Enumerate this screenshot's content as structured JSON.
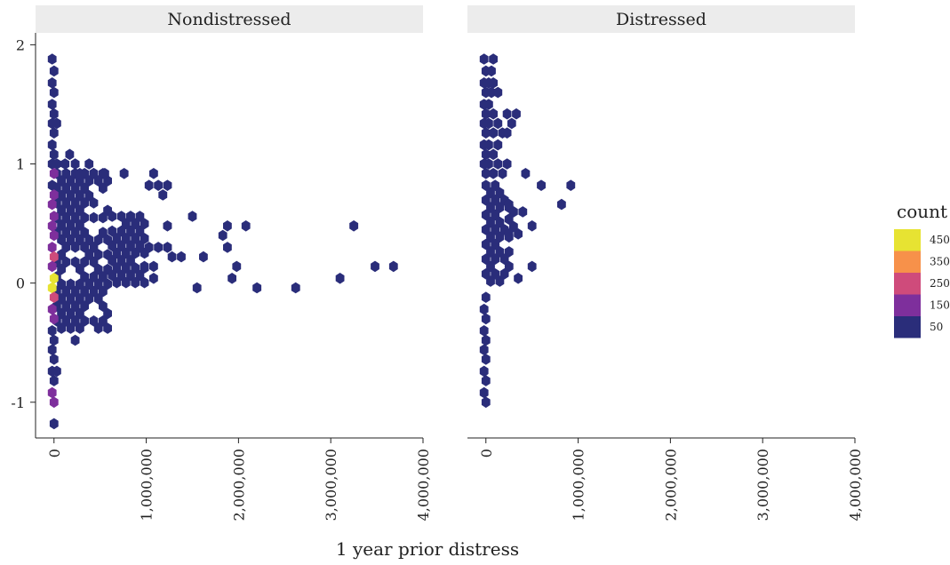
{
  "chart_data": {
    "type": "hexbin",
    "xlabel": "1 year prior distress",
    "ylabel": "",
    "xlim": [
      -200000,
      4000000
    ],
    "ylim": [
      -1.3,
      2.1
    ],
    "x_ticks": [
      0,
      1000000,
      2000000,
      3000000,
      4000000
    ],
    "x_tick_labels": [
      "0",
      "1,000,000",
      "2,000,000",
      "3,000,000",
      "4,000,000"
    ],
    "y_ticks": [
      -1,
      0,
      1,
      2
    ],
    "y_tick_labels": [
      "-1",
      "0",
      "1",
      "2"
    ],
    "legend": {
      "title": "count",
      "placement": "right",
      "entries": [
        {
          "label": "450",
          "color": "#e7e332"
        },
        {
          "label": "350",
          "color": "#f7914a"
        },
        {
          "label": "250",
          "color": "#cf4b7b"
        },
        {
          "label": "150",
          "color": "#7e2f9c"
        },
        {
          "label": "50",
          "color": "#2a2d7a"
        }
      ]
    },
    "panels": [
      {
        "name": "Nondistressed",
        "bins": [
          {
            "x": -20000,
            "y": 1.88,
            "count": 50
          },
          {
            "x": 0,
            "y": 1.78,
            "count": 50
          },
          {
            "x": -20000,
            "y": 1.68,
            "count": 50
          },
          {
            "x": 0,
            "y": 1.6,
            "count": 50
          },
          {
            "x": -20000,
            "y": 1.5,
            "count": 50
          },
          {
            "x": 0,
            "y": 1.42,
            "count": 50
          },
          {
            "x": -20000,
            "y": 1.34,
            "count": 50
          },
          {
            "x": 30000,
            "y": 1.34,
            "count": 50
          },
          {
            "x": 0,
            "y": 1.26,
            "count": 50
          },
          {
            "x": -20000,
            "y": 1.16,
            "count": 50
          },
          {
            "x": 0,
            "y": 1.08,
            "count": 50
          },
          {
            "x": -20000,
            "y": 1.0,
            "count": 50
          },
          {
            "x": 30000,
            "y": 1.0,
            "count": 50
          },
          {
            "x": 0,
            "y": 0.92,
            "count": 150
          },
          {
            "x": -20000,
            "y": 0.82,
            "count": 50
          },
          {
            "x": 0,
            "y": 0.74,
            "count": 150
          },
          {
            "x": -20000,
            "y": 0.66,
            "count": 150
          },
          {
            "x": 0,
            "y": 0.56,
            "count": 150
          },
          {
            "x": -20000,
            "y": 0.48,
            "count": 150
          },
          {
            "x": 0,
            "y": 0.4,
            "count": 150
          },
          {
            "x": -20000,
            "y": 0.3,
            "count": 150
          },
          {
            "x": 0,
            "y": 0.22,
            "count": 250
          },
          {
            "x": -20000,
            "y": 0.14,
            "count": 150
          },
          {
            "x": 0,
            "y": 0.04,
            "count": 450
          },
          {
            "x": -20000,
            "y": -0.04,
            "count": 450
          },
          {
            "x": 0,
            "y": -0.12,
            "count": 250
          },
          {
            "x": -20000,
            "y": -0.22,
            "count": 150
          },
          {
            "x": 0,
            "y": -0.3,
            "count": 150
          },
          {
            "x": -20000,
            "y": -0.4,
            "count": 50
          },
          {
            "x": 0,
            "y": -0.48,
            "count": 50
          },
          {
            "x": -20000,
            "y": -0.56,
            "count": 50
          },
          {
            "x": 0,
            "y": -0.64,
            "count": 50
          },
          {
            "x": -20000,
            "y": -0.74,
            "count": 50
          },
          {
            "x": 30000,
            "y": -0.74,
            "count": 50
          },
          {
            "x": 0,
            "y": -0.82,
            "count": 50
          },
          {
            "x": -20000,
            "y": -0.92,
            "count": 150
          },
          {
            "x": 0,
            "y": -1.0,
            "count": 150
          },
          {
            "x": 0,
            "y": -1.18,
            "count": 50
          },
          {
            "x": 230000,
            "y": -0.48,
            "count": 50
          },
          {
            "x": 120000,
            "y": 1.0,
            "count": 50
          },
          {
            "x": 170000,
            "y": 1.08,
            "count": 50
          },
          {
            "x": 230000,
            "y": 1.0,
            "count": 50
          },
          {
            "x": 280000,
            "y": 0.92,
            "count": 50
          },
          {
            "x": 380000,
            "y": 1.0,
            "count": 50
          },
          {
            "x": 430000,
            "y": 0.92,
            "count": 50
          },
          {
            "x": 550000,
            "y": 0.92,
            "count": 50
          },
          {
            "x": 760000,
            "y": 0.92,
            "count": 50
          },
          {
            "x": 1080000,
            "y": 0.92,
            "count": 50
          },
          {
            "x": 1030000,
            "y": 0.82,
            "count": 50
          },
          {
            "x": 1130000,
            "y": 0.82,
            "count": 50
          },
          {
            "x": 1230000,
            "y": 0.82,
            "count": 50
          },
          {
            "x": 1180000,
            "y": 0.74,
            "count": 50
          },
          {
            "x": 1500000,
            "y": 0.56,
            "count": 50
          },
          {
            "x": 830000,
            "y": 0.56,
            "count": 50
          },
          {
            "x": 1230000,
            "y": 0.48,
            "count": 50
          },
          {
            "x": 1880000,
            "y": 0.48,
            "count": 50
          },
          {
            "x": 2080000,
            "y": 0.48,
            "count": 50
          },
          {
            "x": 3250000,
            "y": 0.48,
            "count": 50
          },
          {
            "x": 1830000,
            "y": 0.4,
            "count": 50
          },
          {
            "x": 1880000,
            "y": 0.3,
            "count": 50
          },
          {
            "x": 1030000,
            "y": 0.3,
            "count": 50
          },
          {
            "x": 1130000,
            "y": 0.3,
            "count": 50
          },
          {
            "x": 1230000,
            "y": 0.3,
            "count": 50
          },
          {
            "x": 930000,
            "y": 0.3,
            "count": 50
          },
          {
            "x": 1280000,
            "y": 0.22,
            "count": 50
          },
          {
            "x": 1380000,
            "y": 0.22,
            "count": 50
          },
          {
            "x": 1620000,
            "y": 0.22,
            "count": 50
          },
          {
            "x": 980000,
            "y": 0.14,
            "count": 50
          },
          {
            "x": 1080000,
            "y": 0.14,
            "count": 50
          },
          {
            "x": 1980000,
            "y": 0.14,
            "count": 50
          },
          {
            "x": 3480000,
            "y": 0.14,
            "count": 50
          },
          {
            "x": 3680000,
            "y": 0.14,
            "count": 50
          },
          {
            "x": 1080000,
            "y": 0.04,
            "count": 50
          },
          {
            "x": 1930000,
            "y": 0.04,
            "count": 50
          },
          {
            "x": 3100000,
            "y": 0.04,
            "count": 50
          },
          {
            "x": 1550000,
            "y": -0.04,
            "count": 50
          },
          {
            "x": 2200000,
            "y": -0.04,
            "count": 50
          },
          {
            "x": 2620000,
            "y": -0.04,
            "count": 50
          }
        ],
        "dense_region": [
          {
            "x_min": 30000,
            "x_max": 630000,
            "y_min": -0.4,
            "y_max": 0.92,
            "count": 50
          },
          {
            "x_min": 630000,
            "x_max": 1000000,
            "y_min": 0.0,
            "y_max": 0.56,
            "count": 50
          }
        ]
      },
      {
        "name": "Distressed",
        "bins": [
          {
            "x": -20000,
            "y": 1.88,
            "count": 50
          },
          {
            "x": 80000,
            "y": 1.88,
            "count": 50
          },
          {
            "x": 0,
            "y": 1.78,
            "count": 50
          },
          {
            "x": 60000,
            "y": 1.78,
            "count": 50
          },
          {
            "x": -20000,
            "y": 1.68,
            "count": 50
          },
          {
            "x": 30000,
            "y": 1.68,
            "count": 50
          },
          {
            "x": 80000,
            "y": 1.68,
            "count": 50
          },
          {
            "x": 0,
            "y": 1.6,
            "count": 50
          },
          {
            "x": 60000,
            "y": 1.6,
            "count": 50
          },
          {
            "x": 130000,
            "y": 1.6,
            "count": 50
          },
          {
            "x": -20000,
            "y": 1.5,
            "count": 50
          },
          {
            "x": 30000,
            "y": 1.5,
            "count": 50
          },
          {
            "x": 0,
            "y": 1.42,
            "count": 50
          },
          {
            "x": 80000,
            "y": 1.42,
            "count": 50
          },
          {
            "x": 230000,
            "y": 1.42,
            "count": 50
          },
          {
            "x": 330000,
            "y": 1.42,
            "count": 50
          },
          {
            "x": -20000,
            "y": 1.34,
            "count": 50
          },
          {
            "x": 30000,
            "y": 1.34,
            "count": 50
          },
          {
            "x": 130000,
            "y": 1.34,
            "count": 50
          },
          {
            "x": 280000,
            "y": 1.34,
            "count": 50
          },
          {
            "x": 0,
            "y": 1.26,
            "count": 50
          },
          {
            "x": 80000,
            "y": 1.26,
            "count": 50
          },
          {
            "x": 180000,
            "y": 1.26,
            "count": 50
          },
          {
            "x": 230000,
            "y": 1.26,
            "count": 50
          },
          {
            "x": -20000,
            "y": 1.16,
            "count": 50
          },
          {
            "x": 30000,
            "y": 1.16,
            "count": 50
          },
          {
            "x": 130000,
            "y": 1.16,
            "count": 50
          },
          {
            "x": 0,
            "y": 1.08,
            "count": 50
          },
          {
            "x": 80000,
            "y": 1.08,
            "count": 50
          },
          {
            "x": -20000,
            "y": 1.0,
            "count": 50
          },
          {
            "x": 30000,
            "y": 1.0,
            "count": 50
          },
          {
            "x": 130000,
            "y": 1.0,
            "count": 50
          },
          {
            "x": 230000,
            "y": 1.0,
            "count": 50
          },
          {
            "x": 0,
            "y": 0.92,
            "count": 50
          },
          {
            "x": 80000,
            "y": 0.92,
            "count": 50
          },
          {
            "x": 180000,
            "y": 0.92,
            "count": 50
          },
          {
            "x": 430000,
            "y": 0.92,
            "count": 50
          },
          {
            "x": 600000,
            "y": 0.82,
            "count": 50
          },
          {
            "x": 920000,
            "y": 0.82,
            "count": 50
          },
          {
            "x": 820000,
            "y": 0.66,
            "count": 50
          },
          {
            "x": 500000,
            "y": 0.48,
            "count": 50
          },
          {
            "x": 500000,
            "y": 0.14,
            "count": 50
          },
          {
            "x": 350000,
            "y": 0.04,
            "count": 50
          },
          {
            "x": 0,
            "y": -0.12,
            "count": 50
          },
          {
            "x": -20000,
            "y": -0.22,
            "count": 50
          },
          {
            "x": 0,
            "y": -0.3,
            "count": 50
          },
          {
            "x": -20000,
            "y": -0.4,
            "count": 50
          },
          {
            "x": 0,
            "y": -0.48,
            "count": 50
          },
          {
            "x": -20000,
            "y": -0.56,
            "count": 50
          },
          {
            "x": 0,
            "y": -0.64,
            "count": 50
          },
          {
            "x": -20000,
            "y": -0.74,
            "count": 50
          },
          {
            "x": 0,
            "y": -0.82,
            "count": 50
          },
          {
            "x": -20000,
            "y": -0.92,
            "count": 50
          },
          {
            "x": 0,
            "y": -1.0,
            "count": 50
          }
        ],
        "dense_region": [
          {
            "x_min": 0,
            "x_max": 250000,
            "y_min": -0.04,
            "y_max": 0.82,
            "count": 50
          },
          {
            "x_min": 250000,
            "x_max": 430000,
            "y_min": 0.4,
            "y_max": 0.66,
            "count": 50
          }
        ]
      }
    ]
  }
}
